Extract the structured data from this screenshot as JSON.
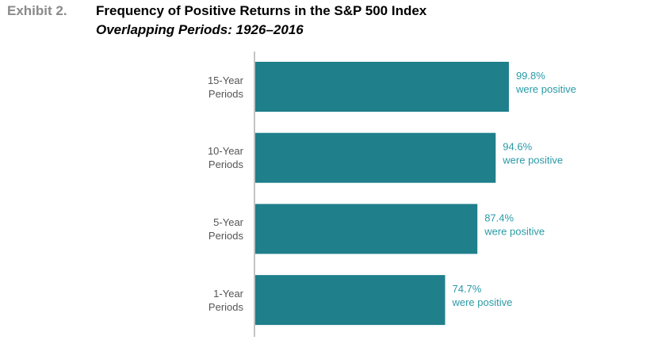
{
  "chart_data": {
    "type": "barh",
    "exhibit": "Exhibit 2.",
    "title": "Frequency of Positive Returns in the S&P 500 Index",
    "subtitle": "Overlapping Periods: 1926–2016",
    "categories": [
      "15-Year Periods",
      "10-Year Periods",
      "5-Year Periods",
      "1-Year Periods"
    ],
    "values": [
      99.8,
      94.6,
      87.4,
      74.7
    ],
    "value_labels": [
      "99.8%",
      "94.6%",
      "87.4%",
      "74.7%"
    ],
    "annotation": "were positive",
    "color": "#1f7f8b",
    "label_color": "#2a9aa6",
    "xlim": [
      0,
      100
    ]
  }
}
